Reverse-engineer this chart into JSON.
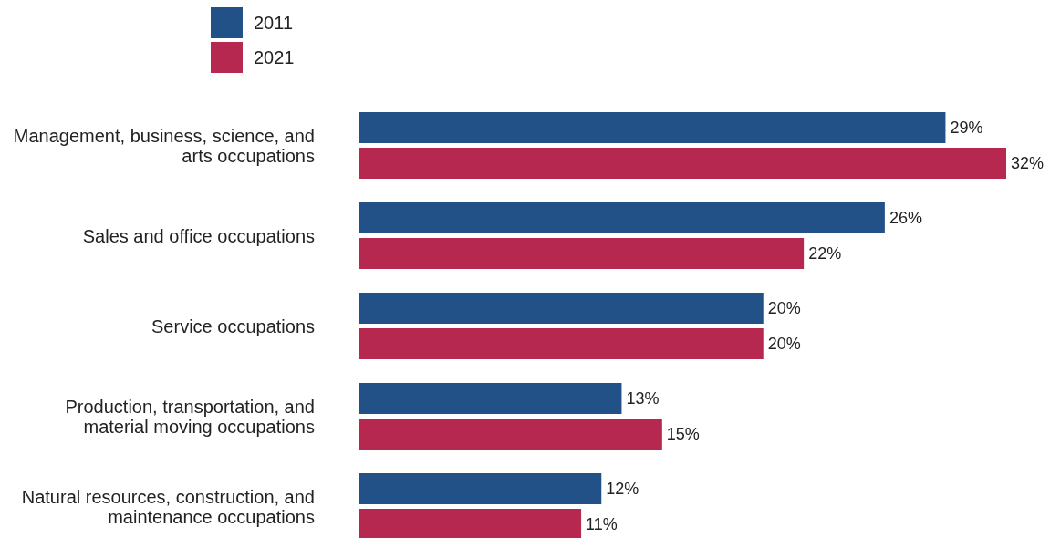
{
  "chart_data": {
    "type": "bar",
    "orientation": "horizontal",
    "legend": "top left",
    "categories": [
      "Management, business, science, and arts occupations",
      "Sales and office occupations",
      "Service occupations",
      "Production, transportation, and material moving occupations",
      "Natural resources, construction, and maintenance occupations"
    ],
    "series": [
      {
        "name": "2011",
        "color": "#215187",
        "values": [
          29,
          26,
          20,
          13,
          12
        ],
        "value_labels": [
          "29%",
          "26%",
          "20%",
          "13%",
          "12%"
        ]
      },
      {
        "name": "2021",
        "color": "#b72851",
        "values": [
          32,
          22,
          20,
          15,
          11
        ],
        "value_labels": [
          "32%",
          "22%",
          "20%",
          "15%",
          "11%"
        ]
      }
    ]
  }
}
